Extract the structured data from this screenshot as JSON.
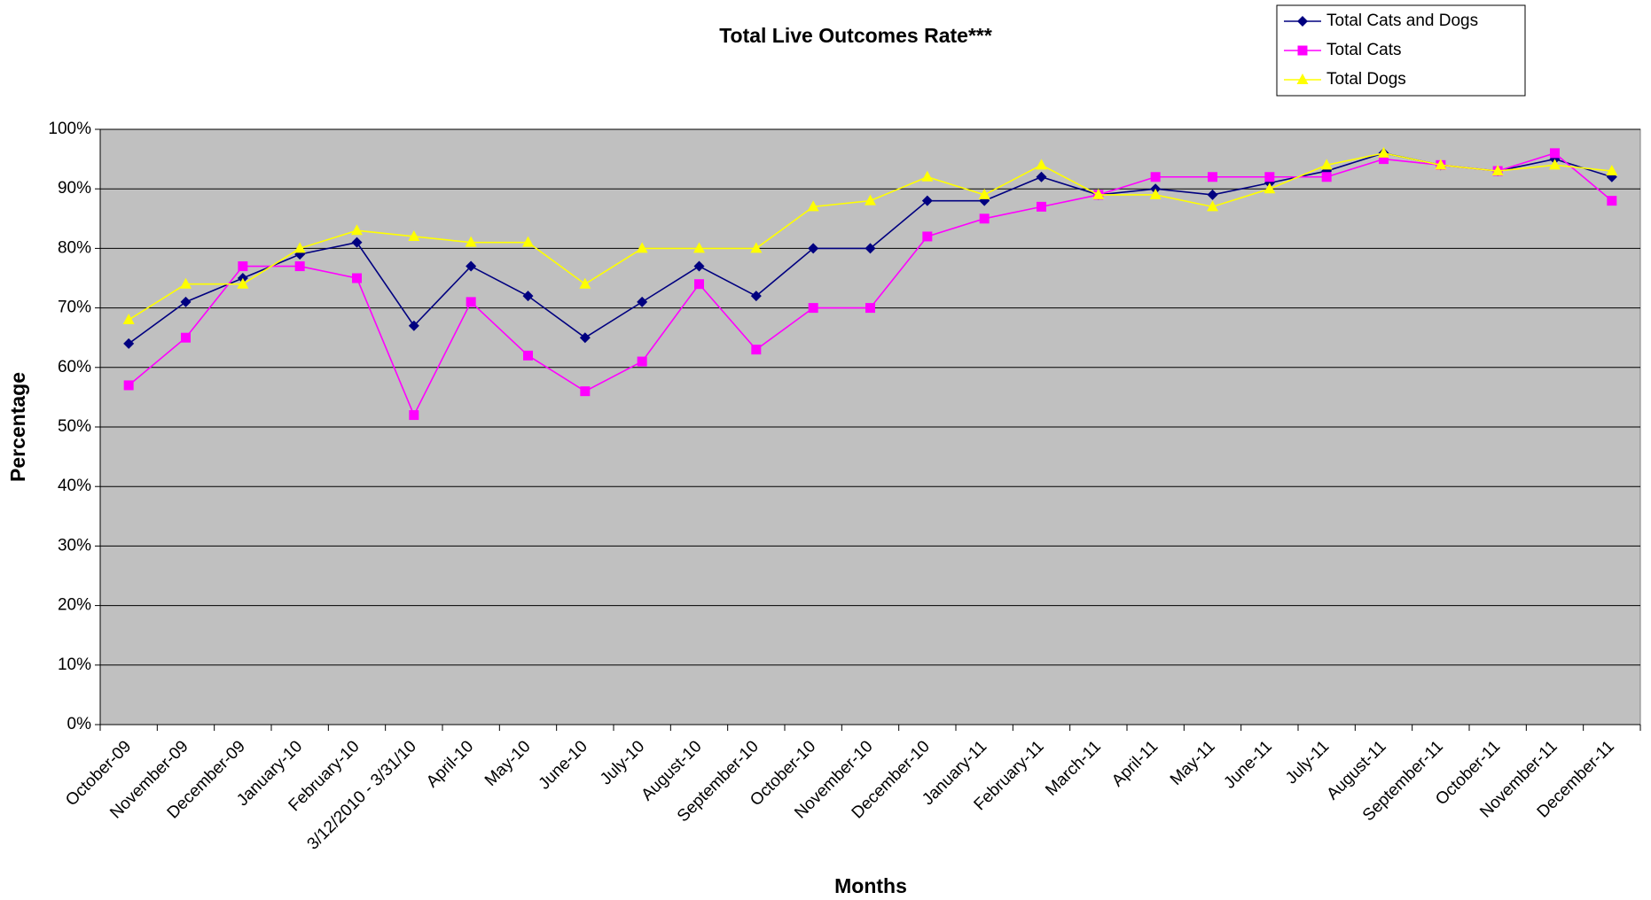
{
  "chart_data": {
    "type": "line",
    "title": "Total Live Outcomes Rate***",
    "x_label": "Months",
    "y_label": "Percentage",
    "categories": [
      "October-09",
      "November-09",
      "December-09",
      "January-10",
      "February-10",
      "3/12/2010 - 3/31/10",
      "April-10",
      "May-10",
      "June-10",
      "July-10",
      "August-10",
      "September-10",
      "October-10",
      "November-10",
      "December-10",
      "January-11",
      "February-11",
      "March-11",
      "April-11",
      "May-11",
      "June-11",
      "July-11",
      "August-11",
      "September-11",
      "October-11",
      "November-11",
      "December-11"
    ],
    "series": [
      {
        "name": "Total Cats and Dogs",
        "color": "#000080",
        "marker": "diamond",
        "values": [
          64,
          71,
          75,
          79,
          81,
          67,
          77,
          72,
          65,
          71,
          77,
          72,
          80,
          80,
          88,
          88,
          92,
          89,
          90,
          89,
          91,
          93,
          96,
          94,
          93,
          95,
          92
        ]
      },
      {
        "name": "Total Cats",
        "color": "#ff00ff",
        "marker": "square",
        "values": [
          57,
          65,
          77,
          77,
          75,
          52,
          71,
          62,
          56,
          61,
          74,
          63,
          70,
          70,
          82,
          85,
          87,
          89,
          92,
          92,
          92,
          92,
          95,
          94,
          93,
          96,
          88
        ]
      },
      {
        "name": "Total Dogs",
        "color": "#ffff00",
        "marker": "triangle",
        "values": [
          68,
          74,
          74,
          80,
          83,
          82,
          81,
          81,
          74,
          80,
          80,
          80,
          87,
          88,
          92,
          89,
          94,
          89,
          89,
          87,
          90,
          94,
          96,
          94,
          93,
          94,
          93
        ]
      }
    ],
    "ylim": [
      0,
      100
    ],
    "yticks": [
      {
        "value": 0,
        "label": "0%"
      },
      {
        "value": 10,
        "label": "10%"
      },
      {
        "value": 20,
        "label": "20%"
      },
      {
        "value": 30,
        "label": "30%"
      },
      {
        "value": 40,
        "label": "40%"
      },
      {
        "value": 50,
        "label": "50%"
      },
      {
        "value": 60,
        "label": "60%"
      },
      {
        "value": 70,
        "label": "70%"
      },
      {
        "value": 80,
        "label": "80%"
      },
      {
        "value": 90,
        "label": "90%"
      },
      {
        "value": 100,
        "label": "100%"
      }
    ],
    "grid": true,
    "legend": "top-right",
    "plot_background": "#c0c0c0"
  }
}
